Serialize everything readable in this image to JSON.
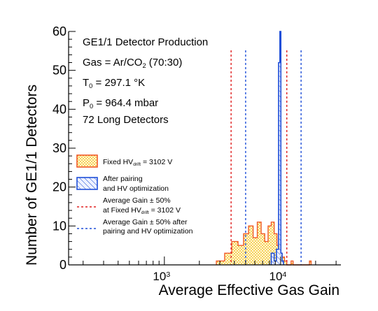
{
  "chart_data": {
    "type": "histogram",
    "title": "",
    "xlabel": "Average Effective Gas Gain",
    "ylabel": "Number of GE1/1 Detectors",
    "x_scale": "log",
    "xlim": [
      150,
      33000
    ],
    "ylim": [
      0,
      60
    ],
    "x_ticks": [
      {
        "value": 1000,
        "base": "10",
        "exp": "3"
      },
      {
        "value": 10000,
        "base": "10",
        "exp": "4"
      }
    ],
    "y_ticks": [
      0,
      10,
      20,
      30,
      40,
      50,
      60
    ],
    "annotations": [
      {
        "key": "line1",
        "parts": [
          {
            "t": "GE1/1 Detector Production"
          }
        ]
      },
      {
        "key": "line2",
        "parts": [
          {
            "t": "Gas = Ar/CO"
          },
          {
            "t": "2",
            "sub": true
          },
          {
            "t": " (70:30)"
          }
        ]
      },
      {
        "key": "line3",
        "parts": [
          {
            "t": "T"
          },
          {
            "t": "0",
            "sub": true
          },
          {
            "t": " = 297.1 °K"
          }
        ]
      },
      {
        "key": "line4",
        "parts": [
          {
            "t": "P"
          },
          {
            "t": "0",
            "sub": true
          },
          {
            "t": " = 964.4 mbar"
          }
        ]
      },
      {
        "key": "line5",
        "parts": [
          {
            "t": "72 Long Detectors"
          }
        ]
      }
    ],
    "legend": {
      "placement": "middle-left",
      "entries": [
        {
          "key": "fixed",
          "symbol": "box-dots",
          "lines": [
            [
              {
                "t": "Fixed HV"
              },
              {
                "t": "drift",
                "sub": true
              },
              {
                "t": " = 3102 V"
              }
            ]
          ]
        },
        {
          "key": "opt",
          "symbol": "box-hatch",
          "lines": [
            [
              {
                "t": "After pairing"
              }
            ],
            [
              {
                "t": "and HV optimization"
              }
            ]
          ]
        },
        {
          "key": "fixedlim",
          "symbol": "dash-red",
          "lines": [
            [
              {
                "t": "Average Gain ± 50%"
              }
            ],
            [
              {
                "t": "at Fixed HV"
              },
              {
                "t": "drift",
                "sub": true
              },
              {
                "t": " = 3102 V"
              }
            ]
          ]
        },
        {
          "key": "optlim",
          "symbol": "dash-blue",
          "lines": [
            [
              {
                "t": "Average Gain ± 50% after"
              }
            ],
            [
              {
                "t": "pairing and HV optimization"
              }
            ]
          ]
        }
      ]
    },
    "series": [
      {
        "key": "fixed_hv",
        "style": "step-dots",
        "color": "#f05a28",
        "fill": "#ffd23c",
        "bins": [
          {
            "x0": 2800,
            "x1": 3300,
            "y": 1
          },
          {
            "x0": 3300,
            "x1": 3800,
            "y": 3
          },
          {
            "x0": 3800,
            "x1": 4300,
            "y": 6
          },
          {
            "x0": 4300,
            "x1": 4800,
            "y": 5
          },
          {
            "x0": 4800,
            "x1": 5300,
            "y": 8
          },
          {
            "x0": 5300,
            "x1": 5800,
            "y": 10
          },
          {
            "x0": 5800,
            "x1": 6300,
            "y": 7
          },
          {
            "x0": 6300,
            "x1": 6800,
            "y": 11
          },
          {
            "x0": 6800,
            "x1": 7300,
            "y": 8
          },
          {
            "x0": 7300,
            "x1": 7800,
            "y": 6
          },
          {
            "x0": 7800,
            "x1": 8300,
            "y": 10
          },
          {
            "x0": 8300,
            "x1": 8800,
            "y": 11
          },
          {
            "x0": 8800,
            "x1": 9300,
            "y": 8
          },
          {
            "x0": 9300,
            "x1": 9800,
            "y": 5
          },
          {
            "x0": 9800,
            "x1": 10300,
            "y": 3
          },
          {
            "x0": 10300,
            "x1": 10800,
            "y": 2
          },
          {
            "x0": 10800,
            "x1": 11300,
            "y": 1
          },
          {
            "x0": 11300,
            "x1": 11800,
            "y": 0
          },
          {
            "x0": 11800,
            "x1": 12300,
            "y": 0
          },
          {
            "x0": 12300,
            "x1": 12800,
            "y": 1
          },
          {
            "x0": 12800,
            "x1": 13300,
            "y": 0
          },
          {
            "x0": 13300,
            "x1": 17700,
            "y": 0
          },
          {
            "x0": 17700,
            "x1": 18300,
            "y": 1
          }
        ]
      },
      {
        "key": "optimized",
        "style": "step-hatch",
        "color": "#1f4fd8",
        "fill": "#1f4fd8",
        "bins": [
          {
            "x0": 8300,
            "x1": 8800,
            "y": 3
          },
          {
            "x0": 8800,
            "x1": 9200,
            "y": 1
          },
          {
            "x0": 9200,
            "x1": 9600,
            "y": 4
          },
          {
            "x0": 9600,
            "x1": 9850,
            "y": 52
          },
          {
            "x0": 9850,
            "x1": 10050,
            "y": 60
          },
          {
            "x0": 10050,
            "x1": 10300,
            "y": 3
          },
          {
            "x0": 10300,
            "x1": 10600,
            "y": 1
          }
        ]
      }
    ],
    "reference_lines": [
      {
        "key": "fixed_low",
        "x": 3750,
        "color": "#e02020"
      },
      {
        "key": "fixed_high",
        "x": 11300,
        "color": "#e02020"
      },
      {
        "key": "opt_low",
        "x": 5000,
        "color": "#1f4fd8"
      },
      {
        "key": "opt_high",
        "x": 15000,
        "color": "#1f4fd8"
      }
    ]
  }
}
